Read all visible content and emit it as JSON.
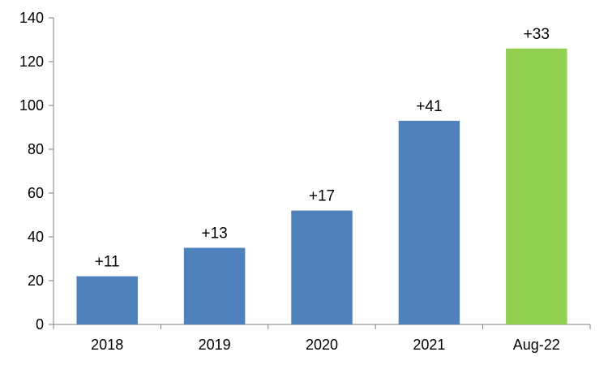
{
  "chart_data": {
    "type": "bar",
    "title": "",
    "xlabel": "",
    "ylabel": "",
    "categories": [
      "2018",
      "2019",
      "2020",
      "2021",
      "Aug-22"
    ],
    "values": [
      22,
      35,
      52,
      93,
      126
    ],
    "data_labels": [
      "+11",
      "+13",
      "+17",
      "+41",
      "+33"
    ],
    "bar_colors": [
      "#4F81BD",
      "#4F81BD",
      "#4F81BD",
      "#4F81BD",
      "#92D050"
    ],
    "ylim": [
      0,
      140
    ],
    "yticks": [
      0,
      20,
      40,
      60,
      80,
      100,
      120,
      140
    ],
    "grid": false,
    "legend": "none"
  }
}
